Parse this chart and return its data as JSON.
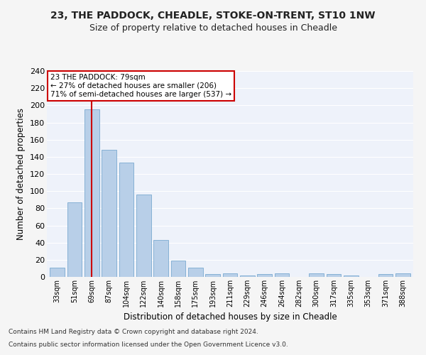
{
  "title_line1": "23, THE PADDOCK, CHEADLE, STOKE-ON-TRENT, ST10 1NW",
  "title_line2": "Size of property relative to detached houses in Cheadle",
  "xlabel": "Distribution of detached houses by size in Cheadle",
  "ylabel": "Number of detached properties",
  "categories": [
    "33sqm",
    "51sqm",
    "69sqm",
    "87sqm",
    "104sqm",
    "122sqm",
    "140sqm",
    "158sqm",
    "175sqm",
    "193sqm",
    "211sqm",
    "229sqm",
    "246sqm",
    "264sqm",
    "282sqm",
    "300sqm",
    "317sqm",
    "335sqm",
    "353sqm",
    "371sqm",
    "388sqm"
  ],
  "values": [
    11,
    87,
    195,
    148,
    133,
    96,
    43,
    19,
    11,
    3,
    4,
    2,
    3,
    4,
    0,
    4,
    3,
    2,
    0,
    3,
    4
  ],
  "bar_color": "#b8cfe8",
  "bar_edge_color": "#7aaad0",
  "background_color": "#eef2fa",
  "grid_color": "#ffffff",
  "fig_background": "#f5f5f5",
  "vline_x_index": 2,
  "vline_color": "#cc0000",
  "annotation_text": "23 THE PADDOCK: 79sqm\n← 27% of detached houses are smaller (206)\n71% of semi-detached houses are larger (537) →",
  "annotation_box_facecolor": "#ffffff",
  "annotation_box_edgecolor": "#cc0000",
  "ylim": [
    0,
    240
  ],
  "yticks": [
    0,
    20,
    40,
    60,
    80,
    100,
    120,
    140,
    160,
    180,
    200,
    220,
    240
  ],
  "footnote_line1": "Contains HM Land Registry data © Crown copyright and database right 2024.",
  "footnote_line2": "Contains public sector information licensed under the Open Government Licence v3.0."
}
